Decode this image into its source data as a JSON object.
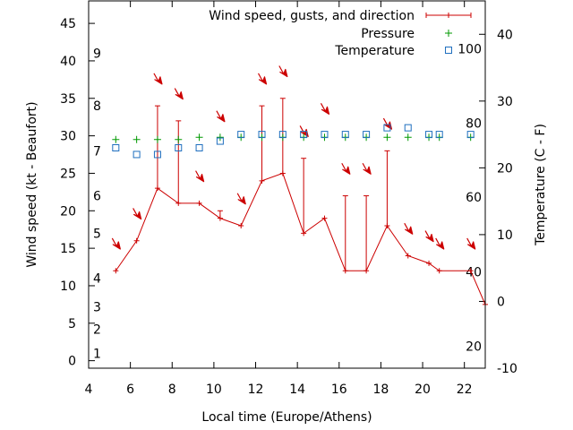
{
  "chart_data": {
    "type": "line",
    "xlabel": "Local time (Europe/Athens)",
    "ylabel_left": "Wind speed (kt - Beaufort)",
    "ylabel_right": "Temperature (C - F)",
    "xlim": [
      4,
      23
    ],
    "ylim_left": [
      -1,
      48
    ],
    "ylim_right": [
      -10,
      45
    ],
    "xticks": [
      "4",
      "6",
      "8",
      "10",
      "12",
      "14",
      "16",
      "18",
      "20",
      "22"
    ],
    "yticks_left": [
      "0",
      "5",
      "10",
      "15",
      "20",
      "25",
      "30",
      "35",
      "40",
      "45"
    ],
    "yticks_right": [
      "-10",
      "0",
      "10",
      "20",
      "30",
      "40"
    ],
    "beaufort_labels": [
      {
        "label": "1",
        "kt": 1
      },
      {
        "label": "2",
        "kt": 4.2
      },
      {
        "label": "3",
        "kt": 7.2
      },
      {
        "label": "4",
        "kt": 11
      },
      {
        "label": "5",
        "kt": 17
      },
      {
        "label": "6",
        "kt": 22
      },
      {
        "label": "7",
        "kt": 28
      },
      {
        "label": "8",
        "kt": 34
      },
      {
        "label": "9",
        "kt": 41
      }
    ],
    "fahrenheit_labels": [
      {
        "label": "20",
        "c": -6.7
      },
      {
        "label": "40",
        "c": 4.4
      },
      {
        "label": "60",
        "c": 15.6
      },
      {
        "label": "80",
        "c": 26.7
      },
      {
        "label": "100",
        "c": 37.8
      }
    ],
    "legend": {
      "wind": "Wind speed, gusts, and direction",
      "pressure": "Pressure",
      "temperature": "Temperature",
      "position": "top-right"
    },
    "series": [
      {
        "name": "Wind speed, gusts, and direction",
        "color": "#cc0000",
        "x": [
          5.3,
          6.3,
          7.3,
          8.3,
          9.3,
          10.3,
          11.3,
          12.3,
          13.3,
          14.3,
          15.3,
          16.3,
          17.3,
          18.3,
          19.3,
          20.3,
          20.8,
          22.3,
          23.0
        ],
        "speed": [
          12,
          16,
          23,
          21,
          21,
          19,
          18,
          24,
          25,
          17,
          19,
          12,
          12,
          18,
          14,
          13,
          12,
          12,
          7.5
        ],
        "gust": [
          null,
          null,
          34,
          32,
          null,
          20,
          null,
          34,
          35,
          27,
          null,
          22,
          22,
          28,
          null,
          null,
          null,
          null,
          null
        ],
        "arrows": [
          {
            "x": 5.3,
            "y": 15.5
          },
          {
            "x": 6.3,
            "y": 19.5
          },
          {
            "x": 7.3,
            "y": 37.5
          },
          {
            "x": 8.3,
            "y": 35.5
          },
          {
            "x": 9.3,
            "y": 24.5
          },
          {
            "x": 10.3,
            "y": 32.5
          },
          {
            "x": 11.3,
            "y": 21.5
          },
          {
            "x": 12.3,
            "y": 37.5
          },
          {
            "x": 13.3,
            "y": 38.5
          },
          {
            "x": 14.3,
            "y": 30.5
          },
          {
            "x": 15.3,
            "y": 33.5
          },
          {
            "x": 16.3,
            "y": 25.5
          },
          {
            "x": 17.3,
            "y": 25.5
          },
          {
            "x": 18.3,
            "y": 31.5
          },
          {
            "x": 19.3,
            "y": 17.5
          },
          {
            "x": 20.3,
            "y": 16.5
          },
          {
            "x": 20.8,
            "y": 15.5
          },
          {
            "x": 22.3,
            "y": 15.5
          }
        ]
      },
      {
        "name": "Pressure",
        "color": "#009900",
        "x": [
          5.3,
          6.3,
          7.3,
          8.3,
          9.3,
          10.3,
          11.3,
          12.3,
          13.3,
          14.3,
          15.3,
          16.3,
          17.3,
          18.3,
          19.3,
          20.3,
          20.8,
          22.3
        ],
        "y": [
          29.5,
          29.5,
          29.5,
          29.5,
          29.8,
          29.8,
          29.8,
          29.8,
          29.8,
          29.8,
          29.8,
          29.8,
          29.8,
          29.8,
          29.8,
          29.8,
          29.8,
          29.8
        ]
      },
      {
        "name": "Temperature",
        "color": "#1f6fbf",
        "x": [
          5.3,
          6.3,
          7.3,
          8.3,
          9.3,
          10.3,
          11.3,
          12.3,
          13.3,
          14.3,
          15.3,
          16.3,
          17.3,
          18.3,
          19.3,
          20.3,
          20.8,
          22.3
        ],
        "y_c": [
          23,
          22,
          22,
          23,
          23,
          24,
          25,
          25,
          25,
          25,
          25,
          25,
          25,
          26,
          26,
          25,
          25,
          25
        ]
      }
    ]
  }
}
